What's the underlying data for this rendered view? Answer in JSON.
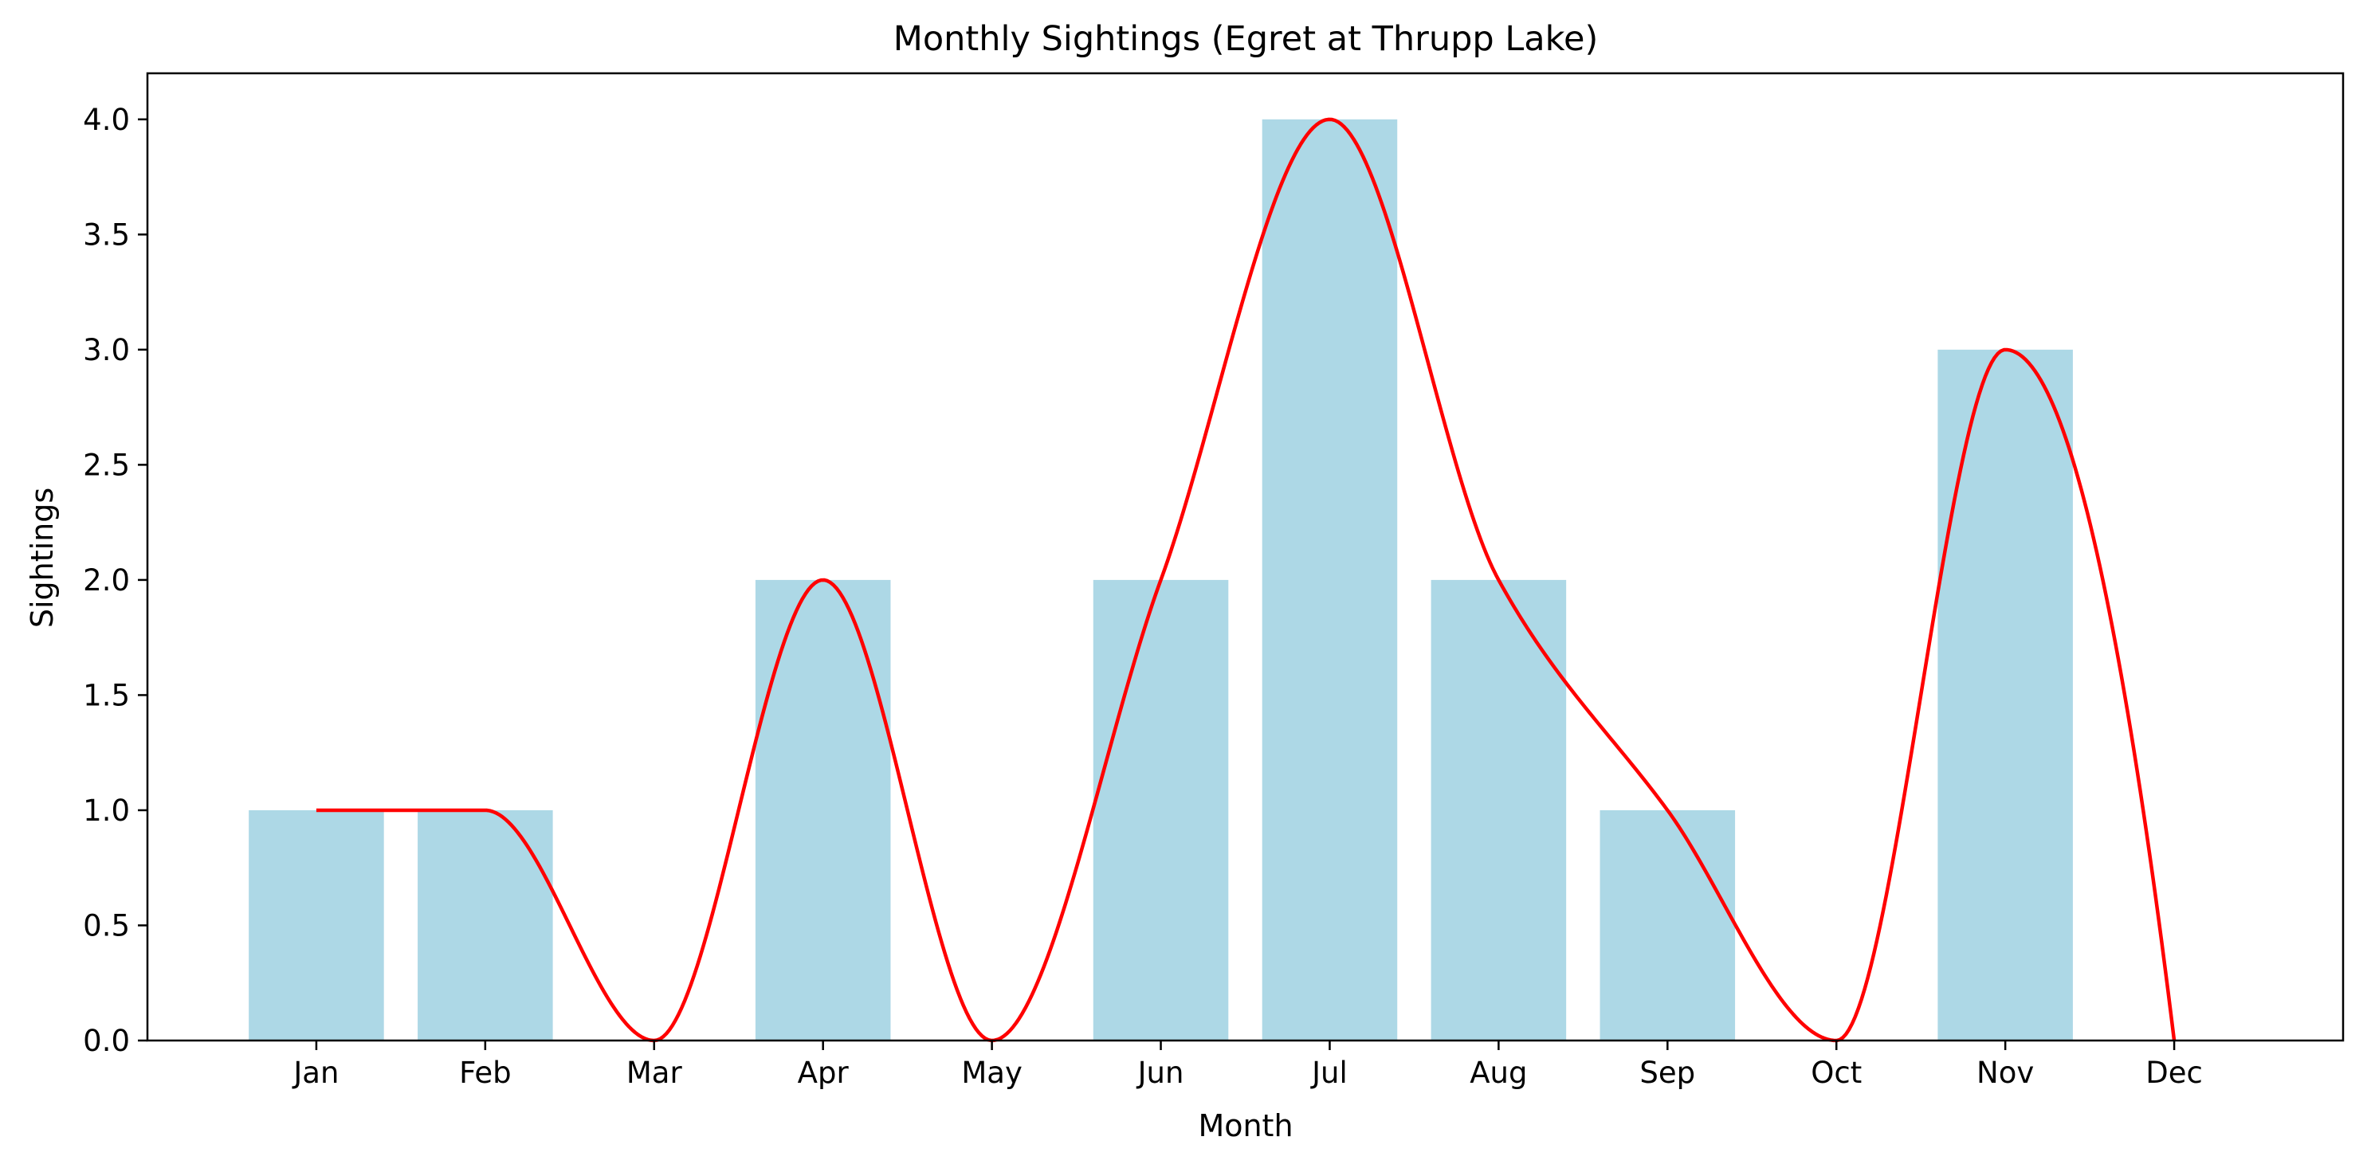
{
  "chart_data": {
    "type": "bar",
    "title": "Monthly Sightings (Egret at Thrupp Lake)",
    "xlabel": "Month",
    "ylabel": "Sightings",
    "categories": [
      "Jan",
      "Feb",
      "Mar",
      "Apr",
      "May",
      "Jun",
      "Jul",
      "Aug",
      "Sep",
      "Oct",
      "Nov",
      "Dec"
    ],
    "series": [
      {
        "type": "bar",
        "values": [
          1,
          1,
          0,
          2,
          0,
          2,
          4,
          2,
          1,
          0,
          3,
          0
        ],
        "color": "#add8e6"
      },
      {
        "type": "line",
        "smooth": true,
        "values": [
          1,
          1,
          0,
          2,
          0,
          2,
          4,
          2,
          1,
          0,
          3,
          0
        ],
        "color": "#ff0000"
      }
    ],
    "ylim": [
      0,
      4.2
    ],
    "yticks": [
      "0.0",
      "0.5",
      "1.0",
      "1.5",
      "2.0",
      "2.5",
      "3.0",
      "3.5",
      "4.0"
    ],
    "grid": false,
    "legend": "none"
  }
}
